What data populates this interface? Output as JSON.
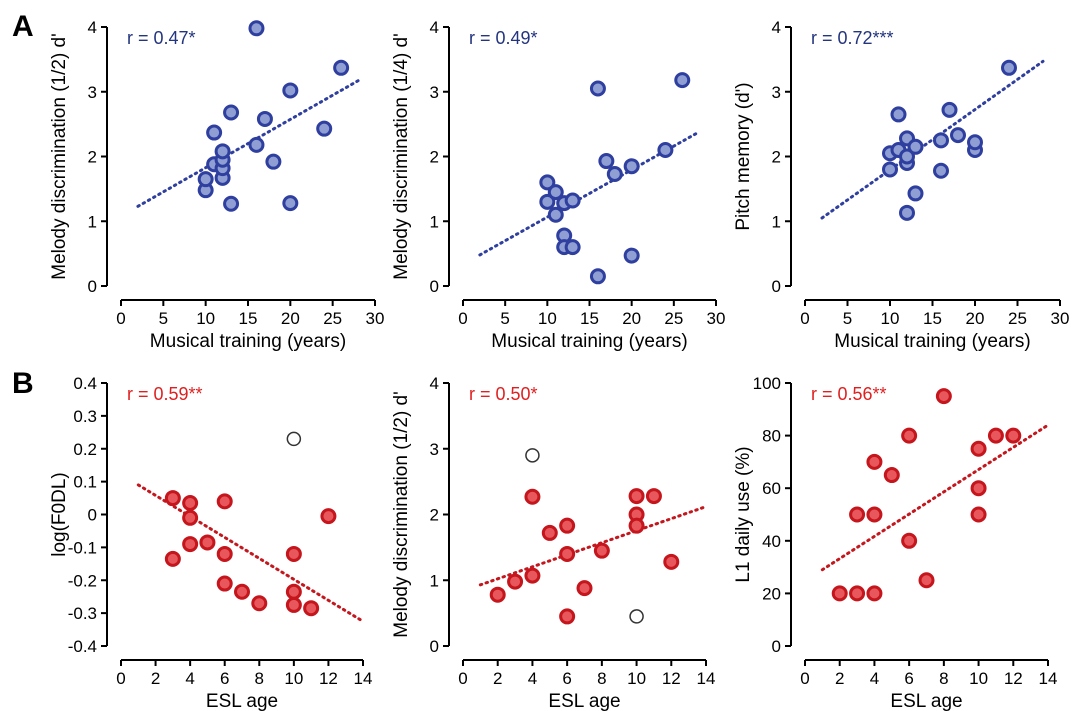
{
  "colors": {
    "blue_fill": "#8f9fd3",
    "blue_stroke": "#2f3f9f",
    "blue_text": "#23357f",
    "red_fill": "#e8575c",
    "red_stroke": "#c4161c",
    "red_text": "#e02020",
    "outlier_stroke": "#333333"
  },
  "panel_labels": [
    "A",
    "B"
  ],
  "chart_data": [
    {
      "type": "scatter",
      "xlabel": "Musical training (years)",
      "ylabel": "Melody discrimination (1/2) d'",
      "xlim": [
        0,
        30
      ],
      "ylim": [
        0,
        4
      ],
      "xticks": [
        "0",
        "5",
        "10",
        "15",
        "20",
        "25",
        "30"
      ],
      "yticks": [
        "0",
        "1",
        "2",
        "3",
        "4"
      ],
      "annotation": "r = 0.47*",
      "color": "blue",
      "points": [
        [
          10,
          1.48
        ],
        [
          10,
          1.65
        ],
        [
          11,
          1.88
        ],
        [
          11,
          2.37
        ],
        [
          12,
          1.67
        ],
        [
          12,
          1.82
        ],
        [
          12,
          1.95
        ],
        [
          12,
          2.08
        ],
        [
          13,
          1.27
        ],
        [
          13,
          2.68
        ],
        [
          16,
          2.18
        ],
        [
          16,
          3.98
        ],
        [
          17,
          2.58
        ],
        [
          18,
          1.92
        ],
        [
          20,
          1.28
        ],
        [
          20,
          3.02
        ],
        [
          24,
          2.43
        ],
        [
          26,
          3.37
        ]
      ],
      "outliers": [],
      "trend": [
        [
          2,
          1.23
        ],
        [
          28,
          3.17
        ]
      ]
    },
    {
      "type": "scatter",
      "xlabel": "Musical training (years)",
      "ylabel": "Melody discrimination (1/4) d'",
      "xlim": [
        0,
        30
      ],
      "ylim": [
        0,
        4
      ],
      "xticks": [
        "0",
        "5",
        "10",
        "15",
        "20",
        "25",
        "30"
      ],
      "yticks": [
        "0",
        "1",
        "2",
        "3",
        "4"
      ],
      "annotation": "r = 0.49*",
      "color": "blue",
      "points": [
        [
          10,
          1.6
        ],
        [
          10,
          1.3
        ],
        [
          11,
          1.45
        ],
        [
          11,
          1.1
        ],
        [
          12,
          1.28
        ],
        [
          12,
          0.78
        ],
        [
          12,
          0.6
        ],
        [
          13,
          1.32
        ],
        [
          13,
          0.6
        ],
        [
          16,
          0.15
        ],
        [
          16,
          3.05
        ],
        [
          17,
          1.93
        ],
        [
          18,
          1.73
        ],
        [
          20,
          1.85
        ],
        [
          20,
          0.47
        ],
        [
          24,
          2.1
        ],
        [
          26,
          3.18
        ]
      ],
      "outliers": [],
      "trend": [
        [
          2,
          0.48
        ],
        [
          28,
          2.38
        ]
      ]
    },
    {
      "type": "scatter",
      "xlabel": "Musical training (years)",
      "ylabel": "Pitch memory (d')",
      "xlim": [
        0,
        30
      ],
      "ylim": [
        0,
        4
      ],
      "xticks": [
        "0",
        "5",
        "10",
        "15",
        "20",
        "25",
        "30"
      ],
      "yticks": [
        "0",
        "1",
        "2",
        "3",
        "4"
      ],
      "annotation": "r = 0.72***",
      "color": "blue",
      "points": [
        [
          10,
          1.8
        ],
        [
          10,
          2.05
        ],
        [
          11,
          2.1
        ],
        [
          11,
          2.65
        ],
        [
          12,
          1.13
        ],
        [
          12,
          1.9
        ],
        [
          12,
          2.0
        ],
        [
          12,
          2.28
        ],
        [
          13,
          1.43
        ],
        [
          13,
          2.15
        ],
        [
          16,
          1.78
        ],
        [
          16,
          2.25
        ],
        [
          17,
          2.72
        ],
        [
          18,
          2.33
        ],
        [
          20,
          2.1
        ],
        [
          20,
          2.22
        ],
        [
          24,
          3.37
        ]
      ],
      "outliers": [],
      "trend": [
        [
          2,
          1.05
        ],
        [
          28,
          3.47
        ]
      ]
    },
    {
      "type": "scatter",
      "xlabel": "ESL age",
      "ylabel": "log(F0DL)",
      "xlim": [
        0,
        14
      ],
      "ylim": [
        -0.4,
        0.4
      ],
      "xticks": [
        "0",
        "2",
        "4",
        "6",
        "8",
        "10",
        "12",
        "14"
      ],
      "yticks": [
        "-0.4",
        "-0.3",
        "-0.2",
        "-0.1",
        "0",
        "0.1",
        "0.2",
        "0.3",
        "0.4"
      ],
      "annotation": "r = 0.59**",
      "color": "red",
      "points": [
        [
          3,
          0.05
        ],
        [
          3,
          -0.135
        ],
        [
          4,
          0.035
        ],
        [
          4,
          -0.01
        ],
        [
          4,
          -0.09
        ],
        [
          5,
          -0.085
        ],
        [
          6,
          0.04
        ],
        [
          6,
          -0.12
        ],
        [
          6,
          -0.21
        ],
        [
          7,
          -0.235
        ],
        [
          8,
          -0.27
        ],
        [
          10,
          -0.12
        ],
        [
          10,
          -0.235
        ],
        [
          10,
          -0.275
        ],
        [
          11,
          -0.285
        ],
        [
          12,
          -0.005
        ]
      ],
      "outliers": [
        [
          10,
          0.23
        ]
      ],
      "trend": [
        [
          1,
          0.09
        ],
        [
          14,
          -0.325
        ]
      ]
    },
    {
      "type": "scatter",
      "xlabel": "ESL age",
      "ylabel": "Melody discrimination (1/2) d'",
      "xlim": [
        0,
        14
      ],
      "ylim": [
        0,
        4
      ],
      "xticks": [
        "0",
        "2",
        "4",
        "6",
        "8",
        "10",
        "12",
        "14"
      ],
      "yticks": [
        "0",
        "1",
        "2",
        "3",
        "4"
      ],
      "annotation": "r = 0.50*",
      "color": "red",
      "points": [
        [
          2,
          0.78
        ],
        [
          3,
          0.98
        ],
        [
          4,
          1.07
        ],
        [
          4,
          2.27
        ],
        [
          5,
          1.72
        ],
        [
          6,
          1.83
        ],
        [
          6,
          1.4
        ],
        [
          6,
          0.45
        ],
        [
          7,
          0.88
        ],
        [
          8,
          1.45
        ],
        [
          10,
          2.28
        ],
        [
          10,
          2.0
        ],
        [
          10,
          1.83
        ],
        [
          11,
          2.28
        ],
        [
          12,
          1.28
        ]
      ],
      "outliers": [
        [
          4,
          2.9
        ],
        [
          10,
          0.45
        ]
      ],
      "trend": [
        [
          1,
          0.93
        ],
        [
          14,
          2.12
        ]
      ]
    },
    {
      "type": "scatter",
      "xlabel": "ESL age",
      "ylabel": "L1 daily use (%)",
      "xlim": [
        0,
        14
      ],
      "ylim": [
        0,
        100
      ],
      "xticks": [
        "0",
        "2",
        "4",
        "6",
        "8",
        "10",
        "12",
        "14"
      ],
      "yticks": [
        "0",
        "20",
        "40",
        "60",
        "80",
        "100"
      ],
      "annotation": "r = 0.56**",
      "color": "red",
      "points": [
        [
          2,
          20
        ],
        [
          3,
          20
        ],
        [
          3,
          50
        ],
        [
          4,
          20
        ],
        [
          4,
          50
        ],
        [
          4,
          70
        ],
        [
          5,
          65
        ],
        [
          6,
          80
        ],
        [
          6,
          40
        ],
        [
          7,
          25
        ],
        [
          8,
          95
        ],
        [
          10,
          75
        ],
        [
          10,
          60
        ],
        [
          10,
          50
        ],
        [
          11,
          80
        ],
        [
          12,
          80
        ]
      ],
      "outliers": [],
      "trend": [
        [
          1,
          29
        ],
        [
          14,
          84
        ]
      ]
    }
  ]
}
